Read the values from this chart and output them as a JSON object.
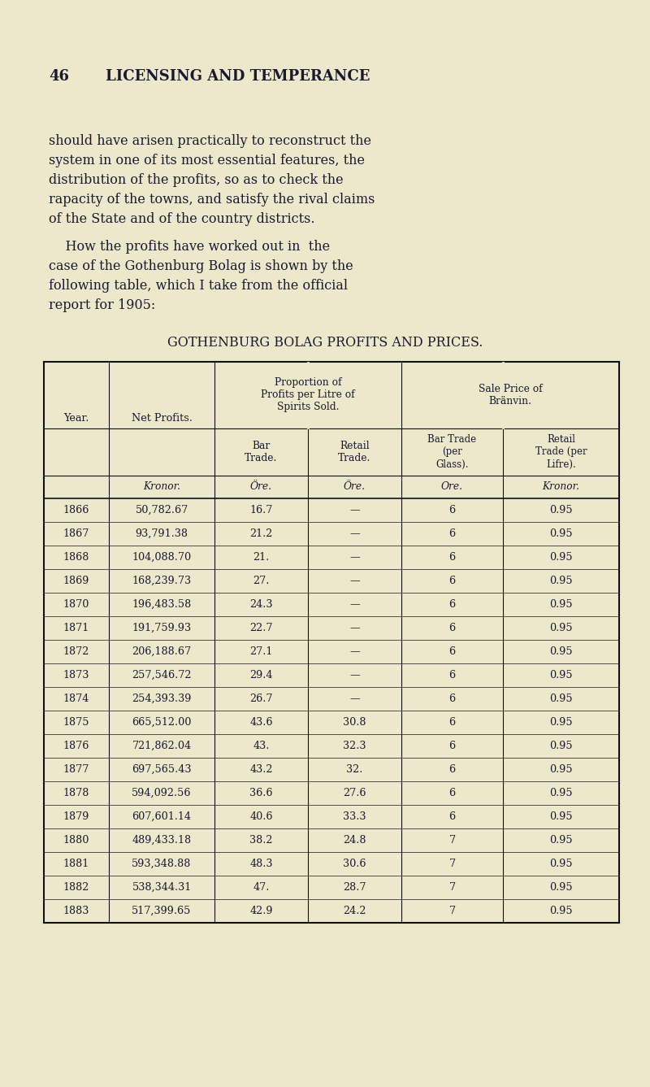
{
  "page_number": "46",
  "chapter_title": "LICENSING AND TEMPERANCE",
  "para1_lines": [
    "should have arisen practically to reconstruct the",
    "system in one of its most essential features, the",
    "distribution of the profits, so as to check the",
    "rapacity of the towns, and satisfy the rival claims",
    "of the State and of the country districts."
  ],
  "para2_lines": [
    "    How the profits have worked out in  the",
    "case of the Gothenburg Bolag is shown by the",
    "following table, which I take from the official",
    "report for 1905:"
  ],
  "table_title": "GOTHENBURG BOLAG PROFITS AND PRICES.",
  "header_row1_col01": [
    "Year.",
    "Net Profits."
  ],
  "header_prop": "Proportion of\nProfits per Litre of\nSpirits Sold.",
  "header_sale": "Sale Price of\nBränvin.",
  "header_row2": [
    "Bar\nTrade.",
    "Retail\nTrade.",
    "Bar Trade\n(per\nGlass).",
    "Retail\nTrade (per\nLifre)."
  ],
  "units_row": [
    "",
    "Kronor.",
    "Öre.",
    "Öre.",
    "Ore.",
    "Kronor."
  ],
  "rows": [
    [
      "1866",
      "50,782.67",
      "16.7",
      "—",
      "6",
      "0.95"
    ],
    [
      "1867",
      "93,791.38",
      "21.2",
      "—",
      "6",
      "0.95"
    ],
    [
      "1868",
      "104,088.70",
      "21.",
      "—",
      "6",
      "0.95"
    ],
    [
      "1869",
      "168,239.73",
      "27.",
      "—",
      "6",
      "0.95"
    ],
    [
      "1870",
      "196,483.58",
      "24.3",
      "—",
      "6",
      "0.95"
    ],
    [
      "1871",
      "191,759.93",
      "22.7",
      "—",
      "6",
      "0.95"
    ],
    [
      "1872",
      "206,188.67",
      "27.1",
      "—",
      "6",
      "0.95"
    ],
    [
      "1873",
      "257,546.72",
      "29.4",
      "—",
      "6",
      "0.95"
    ],
    [
      "1874",
      "254,393.39",
      "26.7",
      "—",
      "6",
      "0.95"
    ],
    [
      "1875",
      "665,512.00",
      "43.6",
      "30.8",
      "6",
      "0.95"
    ],
    [
      "1876",
      "721,862.04",
      "43.",
      "32.3",
      "6",
      "0.95"
    ],
    [
      "1877",
      "697,565.43",
      "43.2",
      "32.",
      "6",
      "0.95"
    ],
    [
      "1878",
      "594,092.56",
      "36.6",
      "27.6",
      "6",
      "0.95"
    ],
    [
      "1879",
      "607,601.14",
      "40.6",
      "33.3",
      "6",
      "0.95"
    ],
    [
      "1880",
      "489,433.18",
      "38.2",
      "24.8",
      "7",
      "0.95"
    ],
    [
      "1881",
      "593,348.88",
      "48.3",
      "30.6",
      "7",
      "0.95"
    ],
    [
      "1882",
      "538,344.31",
      "47.",
      "28.7",
      "7",
      "0.95"
    ],
    [
      "1883",
      "517,399.65",
      "42.9",
      "24.2",
      "7",
      "0.95"
    ]
  ],
  "bg_color": "#ede8cc",
  "text_color": "#1a1a2e",
  "line_color": "#111111"
}
